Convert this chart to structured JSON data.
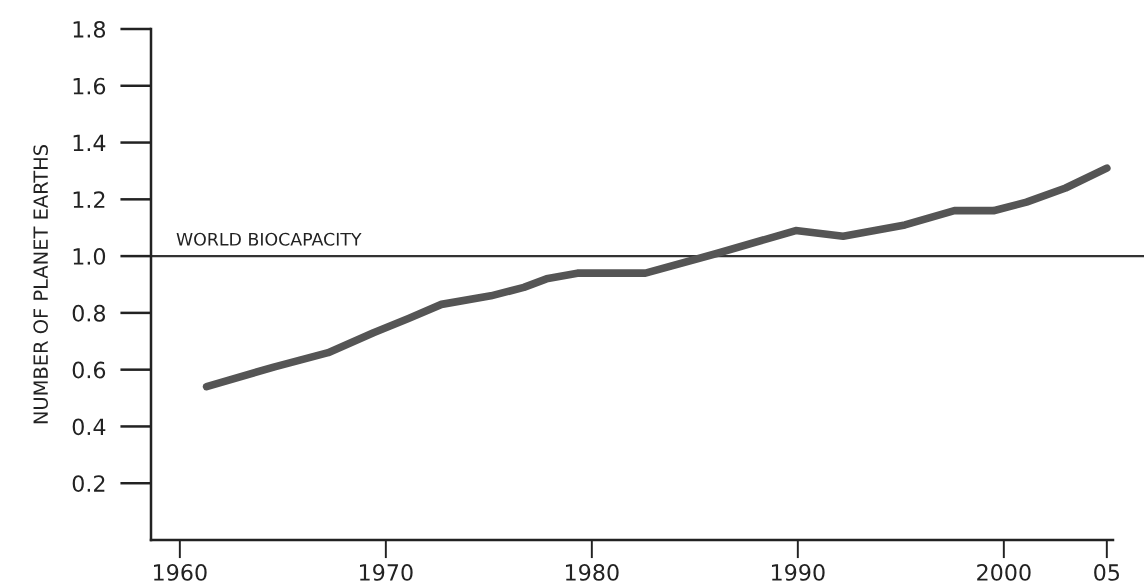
{
  "chart_data": {
    "type": "line",
    "ylabel": "NUMBER OF PLANET EARTHS",
    "series": [
      {
        "color": "#555555",
        "x": [
          1961.3,
          1964.6,
          1967.2,
          1969.4,
          1971.1,
          1972.7,
          1975.1,
          1976.7,
          1977.8,
          1979.3,
          1982.6,
          1986.1,
          1989.9,
          1992.2,
          1995.2,
          1997.6,
          1999.5,
          2001.1,
          2003.0,
          2005.0
        ],
        "values": [
          0.54,
          0.61,
          0.66,
          0.73,
          0.78,
          0.83,
          0.86,
          0.89,
          0.92,
          0.94,
          0.94,
          1.01,
          1.09,
          1.07,
          1.11,
          1.16,
          1.16,
          1.19,
          1.24,
          1.31
        ]
      }
    ],
    "xlim": [
      1958.6,
      2005.3
    ],
    "xticks": [
      1960,
      1970,
      1980,
      1990,
      2000,
      {
        "value": 2005,
        "label": "05"
      }
    ],
    "ylim": [
      0,
      1.8
    ],
    "yticks": [
      0.2,
      0.4,
      0.6,
      0.8,
      {
        "value": 1,
        "label": "1.0"
      },
      1.2,
      1.4,
      1.6,
      1.8
    ],
    "ref_lines": [
      {
        "axis": "y",
        "value": 1,
        "label": "WORLD BIOCAPACITY",
        "color": "#333333",
        "line_style": "solid"
      }
    ],
    "grid": false,
    "marker": "none",
    "line_style": "solid"
  }
}
